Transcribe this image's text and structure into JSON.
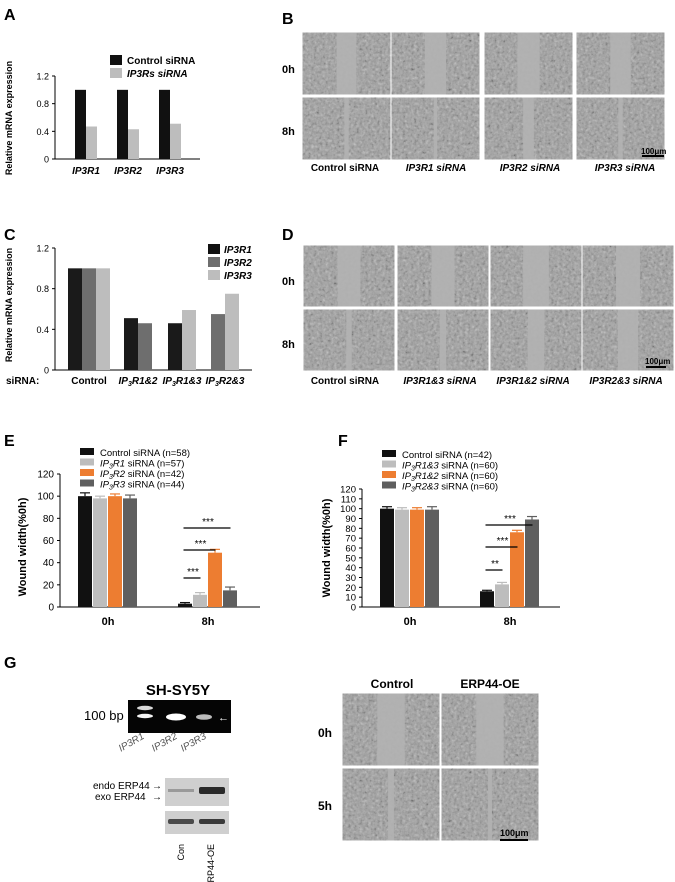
{
  "panel_labels": [
    "A",
    "B",
    "C",
    "D",
    "E",
    "F",
    "G"
  ],
  "colors": {
    "black": "#111111",
    "dark_gray": "#5f5f5f",
    "mid_gray": "#6e6e6e",
    "light_gray": "#bdbdbd",
    "orange": "#ed7d31",
    "micro_bg": "#9d9d9d",
    "micro_cell": "#6a6a6a"
  },
  "chart_data": [
    {
      "id": "A",
      "type": "bar",
      "ylabel": "Relative mRNA expression",
      "ylim": [
        0,
        1.2
      ],
      "yticks": [
        "0",
        "0.4",
        "0.8",
        "1.2"
      ],
      "categories": [
        "IP3R1",
        "IP3R2",
        "IP3R3"
      ],
      "series": [
        {
          "name": "Control siRNA",
          "values": [
            1.0,
            1.0,
            1.0
          ]
        },
        {
          "name": "IP3Rs siRNA",
          "values": [
            0.47,
            0.43,
            0.51
          ]
        }
      ],
      "legend": [
        {
          "text": "Control  siRNA",
          "italic": false
        },
        {
          "text": "IP3Rs siRNA",
          "italic": true
        }
      ]
    },
    {
      "id": "C",
      "type": "bar",
      "ylabel": "Relative mRNA expression",
      "xprefix": "siRNA:",
      "ylim": [
        0,
        1.2
      ],
      "yticks": [
        "0",
        "0.4",
        "0.8",
        "1.2"
      ],
      "categories": [
        "Control",
        "IP3R1&2",
        "IP3R1&3",
        "IP3R2&3"
      ],
      "series": [
        {
          "name": "IP3R1",
          "values": [
            1.0,
            0.51,
            0.46,
            null
          ]
        },
        {
          "name": "IP3R2",
          "values": [
            1.0,
            0.46,
            null,
            0.55
          ]
        },
        {
          "name": "IP3R3",
          "values": [
            1.0,
            null,
            0.59,
            0.75
          ]
        }
      ],
      "legend": [
        {
          "text": "IP3R1",
          "italic": true
        },
        {
          "text": "IP3R2",
          "italic": true
        },
        {
          "text": "IP3R3",
          "italic": true
        }
      ]
    },
    {
      "id": "E",
      "type": "bar",
      "ylabel": "Wound width(%0h)",
      "ylim": [
        0,
        120
      ],
      "yticks": [
        "0",
        "20",
        "40",
        "60",
        "80",
        "100",
        "120"
      ],
      "categories": [
        "0h",
        "8h"
      ],
      "series": [
        {
          "name": "Control siRNA (n=58)",
          "values": [
            100,
            3
          ],
          "errors": [
            3,
            1
          ]
        },
        {
          "name": "IP3R1 siRNA (n=57)",
          "values": [
            98,
            11
          ],
          "errors": [
            2,
            2
          ]
        },
        {
          "name": "IP3R2 siRNA (n=42)",
          "values": [
            100,
            49
          ],
          "errors": [
            2,
            3
          ]
        },
        {
          "name": "IP3R3 siRNA (n=44)",
          "values": [
            98,
            15
          ],
          "errors": [
            3,
            3
          ]
        }
      ],
      "significance": [
        "***",
        "***",
        "***"
      ]
    },
    {
      "id": "F",
      "type": "bar",
      "ylabel": "Wound width(%0h)",
      "ylim": [
        0,
        120
      ],
      "yticks": [
        "0",
        "10",
        "20",
        "30",
        "40",
        "50",
        "60",
        "70",
        "80",
        "90",
        "100",
        "110",
        "120"
      ],
      "categories": [
        "0h",
        "8h"
      ],
      "series": [
        {
          "name": "Control siRNA (n=42)",
          "values": [
            100,
            16
          ],
          "errors": [
            2,
            1
          ]
        },
        {
          "name": "IP3R1&3 siRNA (n=60)",
          "values": [
            99,
            23
          ],
          "errors": [
            2,
            2
          ]
        },
        {
          "name": "IP3R1&2 siRNA (n=60)",
          "values": [
            99,
            76
          ],
          "errors": [
            2,
            2
          ]
        },
        {
          "name": "IP3R2&3 siRNA (n=60)",
          "values": [
            99,
            89
          ],
          "errors": [
            3,
            3
          ]
        }
      ],
      "significance": [
        "**",
        "***",
        "***"
      ]
    }
  ],
  "panel_b": {
    "rows": [
      "0h",
      "8h"
    ],
    "cols": [
      "Control siRNA",
      "IP3R1 siRNA",
      "IP3R2 siRNA",
      "IP3R3 siRNA"
    ],
    "scale": "100μm"
  },
  "panel_d": {
    "rows": [
      "0h",
      "8h"
    ],
    "cols": [
      "Control siRNA",
      "IP3R1&3 siRNA",
      "IP3R1&2 siRNA",
      "IP3R2&3 siRNA"
    ],
    "scale": "100μm"
  },
  "panel_g": {
    "gel_title": "SH-SY5Y",
    "gel_marker": "100 bp",
    "gel_lanes": [
      "IP3R1",
      "IP3R2",
      "IP3R3"
    ],
    "blot_labels": [
      "endo ERP44",
      "exo ERP44"
    ],
    "blot_lanes": [
      "Con",
      "ERP44-OE"
    ],
    "micro_cols": [
      "Control",
      "ERP44-OE"
    ],
    "micro_rows": [
      "0h",
      "5h"
    ],
    "scale": "100μm"
  }
}
